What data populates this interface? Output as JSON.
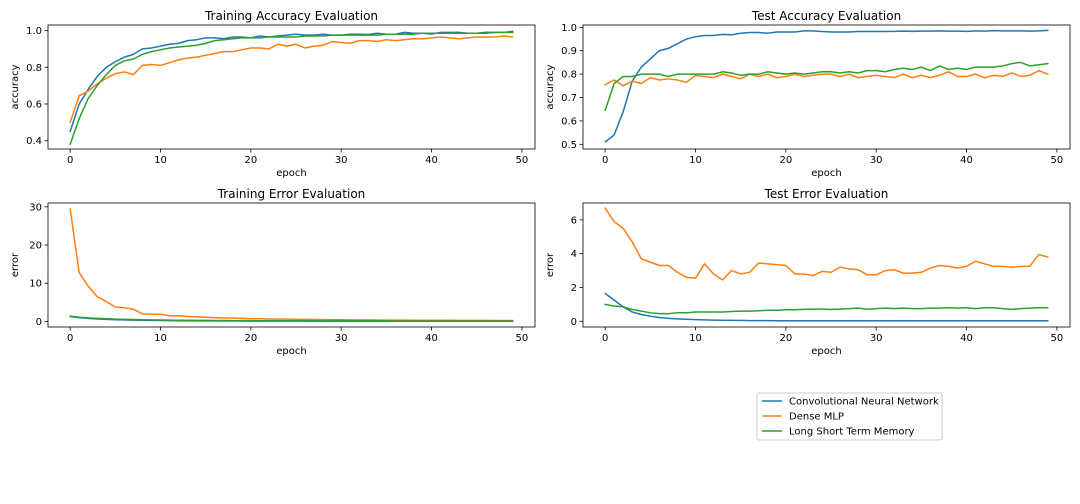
{
  "figure": {
    "legend_placement": "bottom-right, below the Test Error Evaluation panel"
  },
  "series_styles": [
    {
      "name": "Convolutional Neural Network",
      "color": "#1f77b4"
    },
    {
      "name": "Dense MLP",
      "color": "#ff7f0e"
    },
    {
      "name": "Long Short Term Memory",
      "color": "#2ca02c"
    }
  ],
  "chart_data": [
    {
      "type": "line",
      "title": "Training Accuracy Evaluation",
      "xlabel": "epoch",
      "ylabel": "accuracy",
      "xlim": [
        -2.45,
        51.45
      ],
      "ylim": [
        0.355,
        1.03
      ],
      "xticks": [
        0,
        10,
        20,
        30,
        40,
        50
      ],
      "yticks": [
        0.4,
        0.6,
        0.8,
        1.0
      ],
      "ytick_labels": [
        "0.4",
        "0.6",
        "0.8",
        "1.0"
      ],
      "grid": false,
      "series": [
        {
          "name": "Convolutional Neural Network",
          "color": "#1f77b4",
          "values": [
            0.45,
            0.6,
            0.68,
            0.75,
            0.8,
            0.83,
            0.855,
            0.87,
            0.9,
            0.905,
            0.915,
            0.925,
            0.93,
            0.945,
            0.95,
            0.96,
            0.96,
            0.955,
            0.965,
            0.965,
            0.96,
            0.97,
            0.965,
            0.97,
            0.975,
            0.98,
            0.975,
            0.975,
            0.98,
            0.975,
            0.975,
            0.98,
            0.98,
            0.978,
            0.985,
            0.98,
            0.98,
            0.99,
            0.985,
            0.985,
            0.98,
            0.99,
            0.99,
            0.99,
            0.985,
            0.985,
            0.99,
            0.99,
            0.99,
            0.995
          ]
        },
        {
          "name": "Dense MLP",
          "color": "#ff7f0e",
          "values": [
            0.5,
            0.645,
            0.67,
            0.71,
            0.74,
            0.765,
            0.775,
            0.76,
            0.81,
            0.815,
            0.81,
            0.825,
            0.84,
            0.85,
            0.855,
            0.865,
            0.875,
            0.885,
            0.885,
            0.895,
            0.905,
            0.905,
            0.9,
            0.925,
            0.915,
            0.925,
            0.905,
            0.915,
            0.92,
            0.94,
            0.935,
            0.93,
            0.945,
            0.945,
            0.94,
            0.95,
            0.945,
            0.95,
            0.955,
            0.955,
            0.96,
            0.965,
            0.96,
            0.955,
            0.96,
            0.965,
            0.965,
            0.965,
            0.97,
            0.965
          ]
        },
        {
          "name": "Long Short Term Memory",
          "color": "#2ca02c",
          "values": [
            0.38,
            0.52,
            0.63,
            0.7,
            0.76,
            0.81,
            0.835,
            0.845,
            0.87,
            0.885,
            0.895,
            0.905,
            0.91,
            0.915,
            0.92,
            0.93,
            0.945,
            0.95,
            0.955,
            0.96,
            0.96,
            0.96,
            0.965,
            0.965,
            0.965,
            0.965,
            0.97,
            0.97,
            0.97,
            0.975,
            0.975,
            0.975,
            0.975,
            0.975,
            0.975,
            0.98,
            0.98,
            0.98,
            0.98,
            0.985,
            0.985,
            0.985,
            0.985,
            0.985,
            0.985,
            0.985,
            0.985,
            0.99,
            0.99,
            0.99
          ]
        }
      ]
    },
    {
      "type": "line",
      "title": "Test Accuracy Evaluation",
      "xlabel": "epoch",
      "ylabel": "accuracy",
      "xlim": [
        -2.45,
        51.45
      ],
      "ylim": [
        0.48,
        1.01
      ],
      "xticks": [
        0,
        10,
        20,
        30,
        40,
        50
      ],
      "yticks": [
        0.5,
        0.6,
        0.7,
        0.8,
        0.9,
        1.0
      ],
      "ytick_labels": [
        "0.5",
        "0.6",
        "0.7",
        "0.8",
        "0.9",
        "1.0"
      ],
      "grid": false,
      "series": [
        {
          "name": "Convolutional Neural Network",
          "color": "#1f77b4",
          "values": [
            0.51,
            0.54,
            0.64,
            0.77,
            0.83,
            0.865,
            0.9,
            0.91,
            0.93,
            0.95,
            0.96,
            0.965,
            0.965,
            0.97,
            0.968,
            0.975,
            0.978,
            0.978,
            0.975,
            0.98,
            0.98,
            0.98,
            0.985,
            0.985,
            0.982,
            0.98,
            0.98,
            0.98,
            0.982,
            0.982,
            0.982,
            0.982,
            0.983,
            0.984,
            0.983,
            0.984,
            0.984,
            0.985,
            0.984,
            0.984,
            0.983,
            0.985,
            0.984,
            0.986,
            0.985,
            0.985,
            0.985,
            0.984,
            0.985,
            0.987
          ]
        },
        {
          "name": "Dense MLP",
          "color": "#ff7f0e",
          "values": [
            0.755,
            0.775,
            0.75,
            0.77,
            0.76,
            0.785,
            0.775,
            0.78,
            0.775,
            0.765,
            0.795,
            0.79,
            0.785,
            0.8,
            0.79,
            0.78,
            0.8,
            0.79,
            0.8,
            0.785,
            0.79,
            0.8,
            0.79,
            0.795,
            0.8,
            0.8,
            0.79,
            0.8,
            0.785,
            0.79,
            0.795,
            0.79,
            0.785,
            0.8,
            0.785,
            0.795,
            0.785,
            0.795,
            0.81,
            0.79,
            0.79,
            0.8,
            0.785,
            0.795,
            0.79,
            0.805,
            0.79,
            0.795,
            0.815,
            0.8
          ]
        },
        {
          "name": "Long Short Term Memory",
          "color": "#2ca02c",
          "values": [
            0.645,
            0.76,
            0.79,
            0.79,
            0.8,
            0.8,
            0.8,
            0.79,
            0.8,
            0.8,
            0.8,
            0.8,
            0.8,
            0.81,
            0.805,
            0.795,
            0.8,
            0.8,
            0.81,
            0.805,
            0.8,
            0.805,
            0.8,
            0.805,
            0.81,
            0.81,
            0.805,
            0.81,
            0.805,
            0.815,
            0.815,
            0.81,
            0.82,
            0.825,
            0.82,
            0.83,
            0.815,
            0.835,
            0.82,
            0.825,
            0.82,
            0.83,
            0.83,
            0.83,
            0.835,
            0.845,
            0.85,
            0.835,
            0.84,
            0.845
          ]
        }
      ]
    },
    {
      "type": "line",
      "title": "Training Error Evaluation",
      "xlabel": "epoch",
      "ylabel": "error",
      "xlim": [
        -2.45,
        51.45
      ],
      "ylim": [
        -1.45,
        31.0
      ],
      "xticks": [
        0,
        10,
        20,
        30,
        40,
        50
      ],
      "yticks": [
        0,
        10,
        20,
        30
      ],
      "ytick_labels": [
        "0",
        "10",
        "20",
        "30"
      ],
      "grid": false,
      "series": [
        {
          "name": "Convolutional Neural Network",
          "color": "#1f77b4",
          "values": [
            1.3,
            1.0,
            0.8,
            0.65,
            0.55,
            0.45,
            0.4,
            0.35,
            0.3,
            0.28,
            0.25,
            0.22,
            0.2,
            0.18,
            0.16,
            0.15,
            0.14,
            0.13,
            0.12,
            0.11,
            0.1,
            0.1,
            0.09,
            0.09,
            0.08,
            0.08,
            0.08,
            0.07,
            0.07,
            0.07,
            0.06,
            0.06,
            0.06,
            0.06,
            0.06,
            0.05,
            0.05,
            0.05,
            0.05,
            0.05,
            0.05,
            0.05,
            0.05,
            0.04,
            0.04,
            0.04,
            0.04,
            0.04,
            0.04,
            0.04
          ]
        },
        {
          "name": "Dense MLP",
          "color": "#ff7f0e",
          "values": [
            29.5,
            12.8,
            9.2,
            6.5,
            5.2,
            3.8,
            3.6,
            3.2,
            2.0,
            1.9,
            1.9,
            1.5,
            1.5,
            1.3,
            1.2,
            1.1,
            1.0,
            0.9,
            0.9,
            0.8,
            0.75,
            0.7,
            0.65,
            0.6,
            0.6,
            0.55,
            0.55,
            0.5,
            0.5,
            0.45,
            0.45,
            0.42,
            0.4,
            0.4,
            0.38,
            0.36,
            0.35,
            0.34,
            0.33,
            0.32,
            0.31,
            0.3,
            0.3,
            0.29,
            0.28,
            0.27,
            0.27,
            0.26,
            0.25,
            0.25
          ]
        },
        {
          "name": "Long Short Term Memory",
          "color": "#2ca02c",
          "values": [
            1.4,
            1.1,
            0.95,
            0.8,
            0.7,
            0.6,
            0.55,
            0.5,
            0.45,
            0.4,
            0.38,
            0.35,
            0.33,
            0.3,
            0.28,
            0.27,
            0.25,
            0.24,
            0.23,
            0.22,
            0.21,
            0.2,
            0.2,
            0.19,
            0.18,
            0.18,
            0.17,
            0.17,
            0.16,
            0.16,
            0.15,
            0.15,
            0.15,
            0.14,
            0.14,
            0.14,
            0.13,
            0.13,
            0.13,
            0.13,
            0.12,
            0.12,
            0.12,
            0.12,
            0.11,
            0.11,
            0.11,
            0.11,
            0.11,
            0.11
          ]
        }
      ]
    },
    {
      "type": "line",
      "title": "Test Error Evaluation",
      "xlabel": "epoch",
      "ylabel": "error",
      "xlim": [
        -2.45,
        51.45
      ],
      "ylim": [
        -0.34,
        7.0
      ],
      "xticks": [
        0,
        10,
        20,
        30,
        40,
        50
      ],
      "yticks": [
        0,
        2,
        4,
        6
      ],
      "ytick_labels": [
        "0",
        "2",
        "4",
        "6"
      ],
      "grid": false,
      "series": [
        {
          "name": "Convolutional Neural Network",
          "color": "#1f77b4",
          "values": [
            1.65,
            1.25,
            0.85,
            0.55,
            0.4,
            0.3,
            0.22,
            0.17,
            0.14,
            0.12,
            0.1,
            0.08,
            0.07,
            0.06,
            0.05,
            0.05,
            0.04,
            0.04,
            0.04,
            0.03,
            0.03,
            0.03,
            0.03,
            0.03,
            0.03,
            0.03,
            0.03,
            0.03,
            0.03,
            0.03,
            0.03,
            0.03,
            0.03,
            0.03,
            0.03,
            0.03,
            0.03,
            0.03,
            0.03,
            0.03,
            0.03,
            0.03,
            0.03,
            0.03,
            0.03,
            0.03,
            0.03,
            0.03,
            0.03,
            0.03
          ]
        },
        {
          "name": "Dense MLP",
          "color": "#ff7f0e",
          "values": [
            6.7,
            5.9,
            5.5,
            4.7,
            3.7,
            3.5,
            3.3,
            3.3,
            2.9,
            2.6,
            2.55,
            3.4,
            2.8,
            2.45,
            3.0,
            2.8,
            2.9,
            3.45,
            3.4,
            3.35,
            3.3,
            2.8,
            2.8,
            2.7,
            2.95,
            2.9,
            3.2,
            3.1,
            3.05,
            2.75,
            2.75,
            3.0,
            3.05,
            2.85,
            2.85,
            2.9,
            3.15,
            3.3,
            3.25,
            3.15,
            3.25,
            3.55,
            3.4,
            3.25,
            3.25,
            3.2,
            3.25,
            3.25,
            3.95,
            3.8
          ]
        },
        {
          "name": "Long Short Term Memory",
          "color": "#2ca02c",
          "values": [
            1.0,
            0.9,
            0.85,
            0.7,
            0.6,
            0.5,
            0.45,
            0.45,
            0.5,
            0.5,
            0.55,
            0.55,
            0.55,
            0.55,
            0.58,
            0.6,
            0.6,
            0.62,
            0.65,
            0.65,
            0.68,
            0.68,
            0.7,
            0.72,
            0.72,
            0.7,
            0.72,
            0.75,
            0.78,
            0.72,
            0.75,
            0.78,
            0.75,
            0.78,
            0.75,
            0.75,
            0.78,
            0.78,
            0.8,
            0.78,
            0.8,
            0.75,
            0.8,
            0.8,
            0.75,
            0.7,
            0.75,
            0.78,
            0.8,
            0.8
          ]
        }
      ]
    }
  ]
}
